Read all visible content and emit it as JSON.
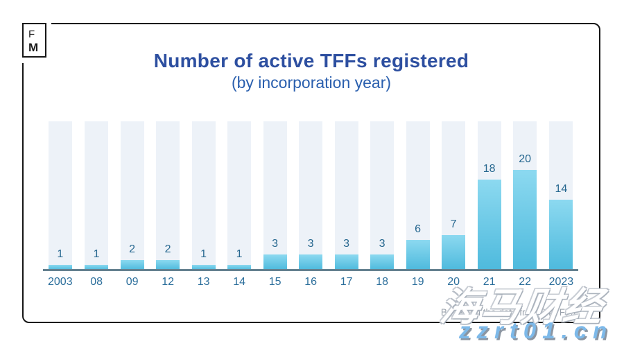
{
  "logo": {
    "line1": "F",
    "line2": "M"
  },
  "header": {
    "title": "Number of active TFFs registered",
    "subtitle": "(by incorporation year)"
  },
  "chart_data": {
    "type": "bar",
    "title": "Number of active TFFs registered",
    "subtitle": "(by incorporation year)",
    "categories": [
      "2003",
      "08",
      "09",
      "12",
      "13",
      "14",
      "15",
      "16",
      "17",
      "18",
      "19",
      "20",
      "21",
      "22",
      "2023"
    ],
    "values": [
      1,
      1,
      2,
      2,
      1,
      1,
      3,
      3,
      3,
      3,
      6,
      7,
      18,
      20,
      14
    ],
    "xlabel": "",
    "ylabel": "",
    "ylim": [
      0,
      30
    ],
    "grid": false,
    "legend": false,
    "bar_color_top": "#8cd9f0",
    "bar_color_bottom": "#4ebadd",
    "track_color": "#edf2f8"
  },
  "footer": {
    "source_note": "Based on the data from 84 TFFs"
  },
  "watermark": {
    "chinese": "海马财经",
    "url": "zzrt01.cn"
  },
  "colors": {
    "title": "#2d4fa0",
    "subtitle": "#2a5fae",
    "axis_label": "#2b6e9b",
    "value_label": "#26678f",
    "axis_line": "#64808f",
    "source_note": "#98a0aa",
    "frame_border": "#151515",
    "watermark_url": "#7db9e9"
  }
}
